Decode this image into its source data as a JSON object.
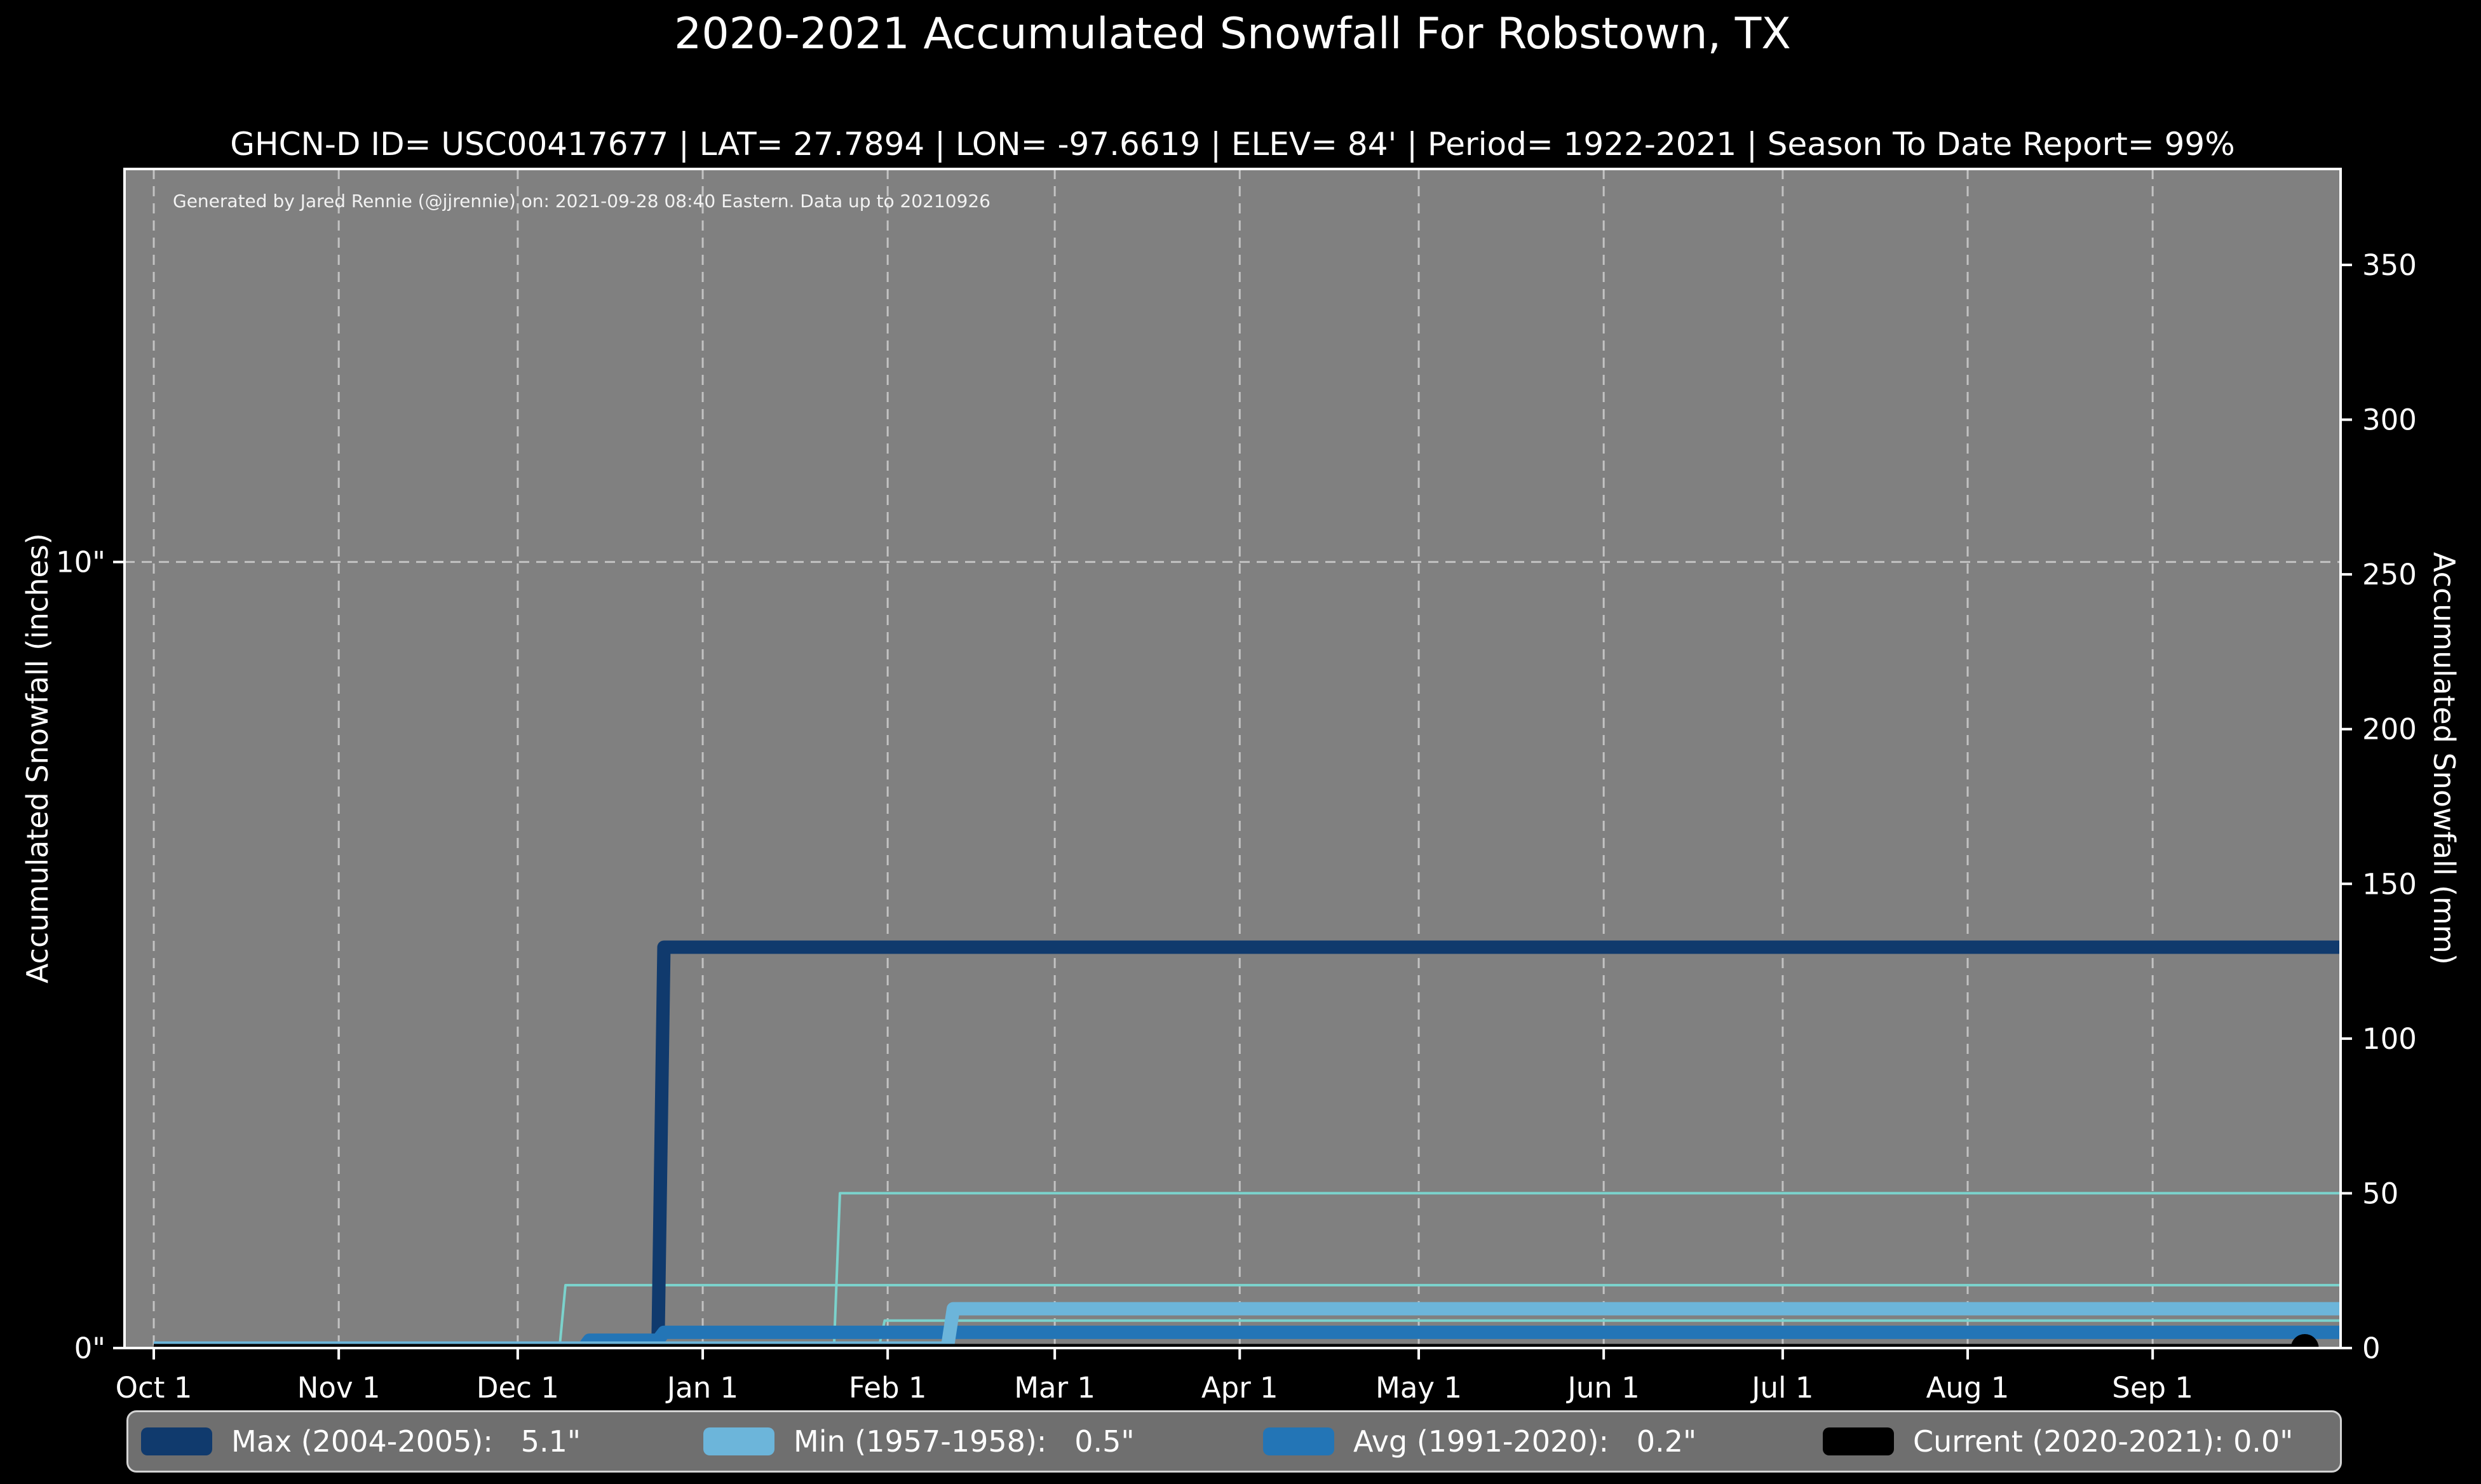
{
  "header": {
    "title": "2020-2021 Accumulated Snowfall For Robstown, TX",
    "subtitle": "GHCN-D ID= USC00417677 | LAT= 27.7894 | LON= -97.6619 | ELEV= 84' | Period= 1922-2021 | Season To Date Report= 99%"
  },
  "annotation": "Generated by Jared Rennie (@jjrennie) on: 2021-09-28 08:40 Eastern. Data up to 20210926",
  "colors": {
    "figure_bg": "#000000",
    "plot_bg": "#808080",
    "grid": "#d9d9d9",
    "spine": "#ffffff",
    "text": "#ffffff",
    "max_line": "#103a6d",
    "min_line": "#6cb5da",
    "avg_line": "#2375b6",
    "current_line": "#000000",
    "other_season_line": "#7bd2cc",
    "legend_bg": "#6f6f6f",
    "legend_border": "#d4d4d4"
  },
  "chart_data": {
    "type": "line",
    "title": "2020-2021 Accumulated Snowfall For Robstown, TX",
    "subtitle": "GHCN-D ID= USC00417677 | LAT= 27.7894 | LON= -97.6619 | ELEV= 84' | Period= 1922-2021 | Season To Date Report= 99%",
    "x_unit": "days since Oct 1",
    "x_range_days": [
      -4.9,
      366.5
    ],
    "x_ticks": [
      {
        "label": "Oct 1",
        "day": 0
      },
      {
        "label": "Nov 1",
        "day": 31
      },
      {
        "label": "Dec 1",
        "day": 61
      },
      {
        "label": "Jan 1",
        "day": 92
      },
      {
        "label": "Feb 1",
        "day": 123
      },
      {
        "label": "Mar 1",
        "day": 151
      },
      {
        "label": "Apr 1",
        "day": 182
      },
      {
        "label": "May 1",
        "day": 212
      },
      {
        "label": "Jun 1",
        "day": 243
      },
      {
        "label": "Jul 1",
        "day": 273
      },
      {
        "label": "Aug 1",
        "day": 304
      },
      {
        "label": "Sep 1",
        "day": 335
      }
    ],
    "left_axis": {
      "label": "Accumulated Snowfall (inches)",
      "range_inches": [
        0,
        15
      ],
      "ticks": [
        {
          "value": 0,
          "label": "0\""
        },
        {
          "value": 10,
          "label": "10\""
        }
      ]
    },
    "right_axis": {
      "label": "Accumulated Snowfall (mm)",
      "range_mm": [
        0,
        381
      ],
      "ticks": [
        0,
        50,
        100,
        150,
        200,
        250,
        300,
        350
      ]
    },
    "grid": {
      "vertical_at_month_ticks": true,
      "horizontal_at_inches": [
        10
      ],
      "style": "dashed"
    },
    "series": [
      {
        "key": "other-season-a",
        "legend": null,
        "color": "#7bd2cc",
        "width": 4,
        "points_day_inches": [
          [
            0,
            0
          ],
          [
            68,
            0
          ],
          [
            69,
            0.8
          ],
          [
            367,
            0.8
          ]
        ]
      },
      {
        "key": "other-season-b",
        "legend": null,
        "color": "#7bd2cc",
        "width": 4,
        "points_day_inches": [
          [
            0,
            0
          ],
          [
            114,
            0
          ],
          [
            115,
            1.97
          ],
          [
            367,
            1.97
          ]
        ]
      },
      {
        "key": "other-season-c",
        "legend": null,
        "color": "#7bd2cc",
        "width": 4,
        "points_day_inches": [
          [
            0,
            0
          ],
          [
            121.5,
            0
          ],
          [
            122.5,
            0.35
          ],
          [
            367,
            0.35
          ]
        ]
      },
      {
        "key": "max",
        "legend": "Max (2004-2005):   5.1\"",
        "color": "#103a6d",
        "width": 21,
        "points_day_inches": [
          [
            0,
            0
          ],
          [
            84.5,
            0
          ],
          [
            85.5,
            5.1
          ],
          [
            367,
            5.1
          ]
        ]
      },
      {
        "key": "avg",
        "legend": "Avg (1991-2020):   0.2\"",
        "color": "#2375b6",
        "width": 21,
        "points_day_inches": [
          [
            0,
            0
          ],
          [
            72,
            0
          ],
          [
            73,
            0.1
          ],
          [
            84.5,
            0.1
          ],
          [
            85.5,
            0.2
          ],
          [
            367,
            0.2
          ]
        ]
      },
      {
        "key": "min",
        "legend": "Min (1957-1958):   0.5\"",
        "color": "#6cb5da",
        "width": 21,
        "points_day_inches": [
          [
            0,
            0
          ],
          [
            133,
            0
          ],
          [
            134,
            0.5
          ],
          [
            367,
            0.5
          ]
        ]
      },
      {
        "key": "current",
        "legend": "Current (2020-2021): 0.0\"",
        "color": "#000000",
        "width": 13,
        "points_day_inches": [
          [
            0,
            0
          ],
          [
            360.5,
            0
          ]
        ],
        "end_dot": true,
        "dot_radius": 22
      }
    ],
    "legend": [
      {
        "key": "max",
        "label": "Max (2004-2005):   5.1\"",
        "color": "#103a6d"
      },
      {
        "key": "min",
        "label": "Min (1957-1958):   0.5\"",
        "color": "#6cb5da"
      },
      {
        "key": "avg",
        "label": "Avg (1991-2020):   0.2\"",
        "color": "#2375b6"
      },
      {
        "key": "current",
        "label": "Current (2020-2021): 0.0\"",
        "color": "#000000"
      }
    ],
    "season_totals_inches": {
      "max": 5.1,
      "min": 0.5,
      "avg": 0.2,
      "current": 0.0
    }
  }
}
